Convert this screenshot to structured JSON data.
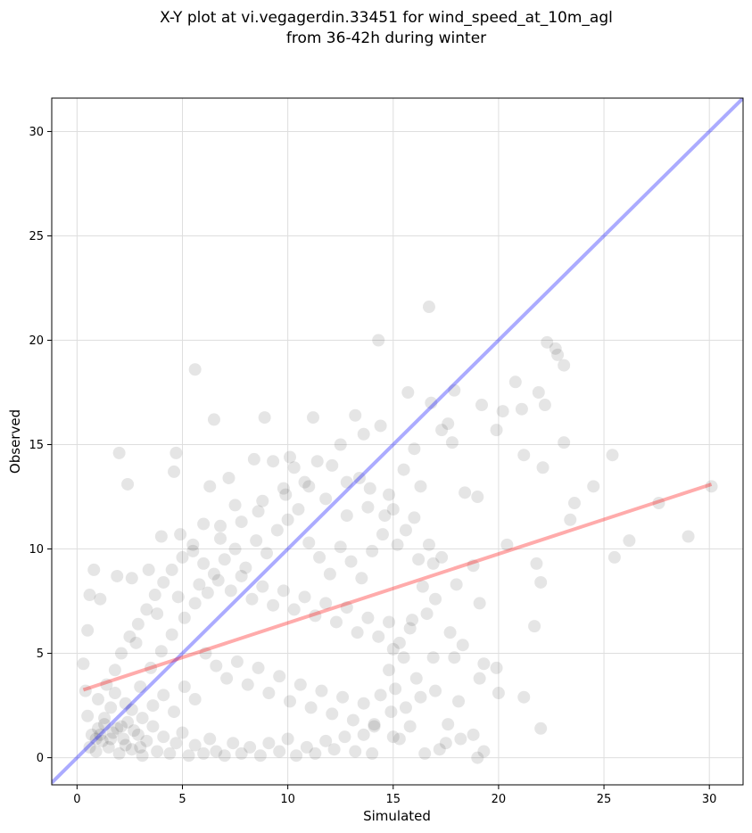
{
  "chart_data": {
    "type": "scatter",
    "title": "X-Y plot at vi.vegagerdin.33451 for wind_speed_at_10m_agl\nfrom 36-42h during winter",
    "title_lines": [
      "X-Y plot at vi.vegagerdin.33451 for wind_speed_at_10m_agl",
      "from 36-42h during winter"
    ],
    "xlabel": "Simulated",
    "ylabel": "Observed",
    "xlim": [
      -1.2,
      31.6
    ],
    "ylim": [
      -1.3,
      31.6
    ],
    "xticks": [
      0,
      5,
      10,
      15,
      20,
      25,
      30
    ],
    "yticks": [
      0,
      5,
      10,
      15,
      20,
      25,
      30
    ],
    "grid": true,
    "point_color": "#000000",
    "point_opacity": 0.1,
    "identity_line": {
      "x": [
        -1.2,
        31.6
      ],
      "y": [
        -1.2,
        31.6
      ],
      "color": "#0000ff",
      "opacity": 0.33
    },
    "regression_line": {
      "x": [
        0.3,
        30.1
      ],
      "y": [
        3.25,
        13.1
      ],
      "color": "#ff0000",
      "opacity": 0.33
    },
    "points": [
      [
        2.0,
        14.6
      ],
      [
        2.4,
        13.1
      ],
      [
        4.6,
        13.7
      ],
      [
        4.7,
        14.6
      ],
      [
        5.6,
        18.6
      ],
      [
        6.5,
        16.2
      ],
      [
        8.9,
        16.3
      ],
      [
        14.3,
        20.0
      ],
      [
        16.7,
        21.6
      ],
      [
        15.7,
        17.5
      ],
      [
        17.9,
        17.6
      ],
      [
        19.2,
        16.9
      ],
      [
        19.9,
        15.7
      ],
      [
        20.2,
        16.6
      ],
      [
        20.8,
        18.0
      ],
      [
        21.1,
        16.7
      ],
      [
        21.9,
        17.5
      ],
      [
        22.2,
        16.9
      ],
      [
        22.3,
        19.9
      ],
      [
        22.7,
        19.6
      ],
      [
        22.8,
        19.3
      ],
      [
        23.1,
        18.8
      ],
      [
        22.1,
        13.9
      ],
      [
        23.1,
        15.1
      ],
      [
        23.4,
        11.4
      ],
      [
        23.6,
        12.2
      ],
      [
        24.5,
        13.0
      ],
      [
        25.4,
        14.5
      ],
      [
        25.5,
        9.6
      ],
      [
        26.2,
        10.4
      ],
      [
        27.6,
        12.2
      ],
      [
        29.0,
        10.6
      ],
      [
        30.1,
        13.0
      ],
      [
        21.7,
        6.3
      ],
      [
        22.0,
        1.4
      ],
      [
        21.2,
        2.9
      ],
      [
        20.0,
        3.1
      ],
      [
        19.9,
        4.3
      ],
      [
        19.3,
        4.5
      ],
      [
        19.1,
        3.8
      ],
      [
        19.3,
        0.3
      ],
      [
        19.0,
        0.0
      ],
      [
        18.8,
        1.1
      ],
      [
        18.2,
        0.9
      ],
      [
        21.8,
        9.3
      ],
      [
        22.0,
        8.4
      ],
      [
        20.4,
        10.2
      ],
      [
        21.2,
        14.5
      ],
      [
        18.4,
        12.7
      ],
      [
        19.0,
        12.5
      ],
      [
        18.8,
        9.2
      ],
      [
        19.1,
        7.4
      ],
      [
        17.8,
        15.1
      ],
      [
        17.6,
        16.0
      ],
      [
        16.8,
        17.0
      ],
      [
        17.3,
        15.7
      ],
      [
        16.0,
        14.8
      ],
      [
        16.3,
        13.0
      ],
      [
        16.0,
        11.5
      ],
      [
        15.6,
        10.9
      ],
      [
        16.7,
        10.2
      ],
      [
        16.4,
        8.2
      ],
      [
        15.9,
        6.6
      ],
      [
        15.0,
        5.2
      ],
      [
        15.5,
        4.8
      ],
      [
        14.8,
        4.2
      ],
      [
        14.4,
        3.0
      ],
      [
        14.9,
        2.2
      ],
      [
        14.1,
        1.6
      ],
      [
        15.0,
        1.0
      ],
      [
        15.8,
        1.5
      ],
      [
        16.5,
        0.2
      ],
      [
        17.2,
        0.4
      ],
      [
        17.6,
        1.6
      ],
      [
        18.1,
        2.7
      ],
      [
        17.0,
        3.2
      ],
      [
        16.1,
        3.8
      ],
      [
        16.9,
        4.8
      ],
      [
        17.5,
        0.7
      ],
      [
        15.3,
        0.9
      ],
      [
        11.2,
        16.3
      ],
      [
        12.5,
        15.0
      ],
      [
        13.2,
        16.4
      ],
      [
        13.6,
        15.5
      ],
      [
        14.4,
        15.9
      ],
      [
        13.4,
        13.4
      ],
      [
        12.1,
        14.0
      ],
      [
        11.0,
        13.0
      ],
      [
        10.1,
        14.4
      ],
      [
        9.3,
        14.2
      ],
      [
        9.9,
        12.6
      ],
      [
        8.6,
        11.8
      ],
      [
        7.5,
        12.1
      ],
      [
        6.8,
        11.1
      ],
      [
        6.0,
        11.2
      ],
      [
        5.5,
        10.2
      ],
      [
        4.9,
        10.7
      ],
      [
        4.0,
        10.6
      ],
      [
        3.4,
        9.0
      ],
      [
        2.6,
        8.6
      ],
      [
        1.9,
        8.7
      ],
      [
        0.8,
        9.0
      ],
      [
        1.1,
        7.6
      ],
      [
        0.6,
        7.8
      ],
      [
        0.5,
        6.1
      ],
      [
        0.3,
        4.5
      ],
      [
        0.4,
        3.2
      ],
      [
        0.5,
        2.0
      ],
      [
        0.7,
        1.1
      ],
      [
        0.9,
        0.3
      ],
      [
        1.2,
        0.8
      ],
      [
        1.0,
        1.4
      ],
      [
        1.3,
        1.9
      ],
      [
        1.5,
        0.5
      ],
      [
        1.7,
        1.2
      ],
      [
        2.0,
        0.2
      ],
      [
        2.2,
        0.9
      ],
      [
        2.4,
        1.7
      ],
      [
        2.6,
        0.4
      ],
      [
        2.9,
        1.1
      ],
      [
        3.1,
        0.1
      ],
      [
        3.3,
        0.8
      ],
      [
        3.6,
        1.5
      ],
      [
        3.8,
        0.3
      ],
      [
        4.1,
        1.0
      ],
      [
        4.4,
        0.2
      ],
      [
        4.7,
        0.7
      ],
      [
        5.0,
        1.2
      ],
      [
        5.3,
        0.1
      ],
      [
        5.6,
        0.6
      ],
      [
        6.0,
        0.2
      ],
      [
        6.3,
        0.9
      ],
      [
        6.6,
        0.3
      ],
      [
        7.0,
        0.1
      ],
      [
        7.4,
        0.7
      ],
      [
        7.8,
        0.2
      ],
      [
        8.2,
        0.5
      ],
      [
        8.7,
        0.1
      ],
      [
        9.1,
        0.7
      ],
      [
        9.6,
        0.3
      ],
      [
        10.0,
        0.9
      ],
      [
        10.4,
        0.1
      ],
      [
        10.9,
        0.5
      ],
      [
        11.3,
        0.2
      ],
      [
        11.8,
        0.8
      ],
      [
        12.2,
        0.4
      ],
      [
        12.7,
        1.0
      ],
      [
        13.2,
        0.3
      ],
      [
        13.6,
        1.1
      ],
      [
        14.0,
        0.2
      ],
      [
        1.0,
        2.8
      ],
      [
        1.4,
        3.5
      ],
      [
        1.8,
        4.2
      ],
      [
        2.1,
        5.0
      ],
      [
        2.5,
        5.8
      ],
      [
        2.9,
        6.4
      ],
      [
        3.3,
        7.1
      ],
      [
        3.7,
        7.8
      ],
      [
        4.1,
        8.4
      ],
      [
        4.5,
        9.0
      ],
      [
        5.0,
        9.6
      ],
      [
        5.5,
        9.9
      ],
      [
        6.0,
        9.3
      ],
      [
        6.5,
        8.8
      ],
      [
        7.0,
        9.5
      ],
      [
        7.5,
        10.0
      ],
      [
        8.0,
        9.1
      ],
      [
        8.5,
        10.4
      ],
      [
        9.0,
        9.8
      ],
      [
        9.5,
        10.9
      ],
      [
        10.0,
        11.4
      ],
      [
        10.5,
        11.9
      ],
      [
        11.0,
        10.3
      ],
      [
        11.5,
        9.6
      ],
      [
        12.0,
        8.8
      ],
      [
        12.5,
        10.1
      ],
      [
        13.0,
        9.4
      ],
      [
        13.5,
        8.6
      ],
      [
        14.0,
        9.9
      ],
      [
        14.5,
        10.7
      ],
      [
        15.0,
        11.9
      ],
      [
        15.5,
        13.8
      ],
      [
        14.8,
        12.6
      ],
      [
        13.8,
        12.0
      ],
      [
        12.8,
        11.6
      ],
      [
        11.8,
        12.4
      ],
      [
        10.8,
        13.2
      ],
      [
        9.8,
        12.9
      ],
      [
        8.8,
        12.3
      ],
      [
        7.8,
        11.3
      ],
      [
        6.8,
        10.5
      ],
      [
        5.8,
        8.3
      ],
      [
        4.8,
        7.7
      ],
      [
        3.8,
        6.9
      ],
      [
        2.8,
        5.5
      ],
      [
        1.8,
        3.1
      ],
      [
        2.3,
        2.6
      ],
      [
        3.0,
        3.4
      ],
      [
        3.5,
        4.3
      ],
      [
        4.0,
        5.1
      ],
      [
        4.5,
        5.9
      ],
      [
        5.1,
        6.7
      ],
      [
        5.6,
        7.4
      ],
      [
        6.2,
        7.9
      ],
      [
        6.7,
        8.5
      ],
      [
        7.3,
        8.0
      ],
      [
        7.8,
        8.7
      ],
      [
        8.3,
        7.6
      ],
      [
        8.8,
        8.2
      ],
      [
        9.3,
        7.3
      ],
      [
        9.8,
        8.0
      ],
      [
        10.3,
        7.1
      ],
      [
        10.8,
        7.7
      ],
      [
        11.3,
        6.8
      ],
      [
        11.8,
        7.4
      ],
      [
        12.3,
        6.5
      ],
      [
        12.8,
        7.2
      ],
      [
        13.3,
        6.0
      ],
      [
        13.8,
        6.7
      ],
      [
        14.3,
        5.8
      ],
      [
        14.8,
        6.5
      ],
      [
        15.3,
        5.5
      ],
      [
        15.8,
        6.2
      ],
      [
        6.1,
        5.0
      ],
      [
        6.6,
        4.4
      ],
      [
        7.1,
        3.8
      ],
      [
        7.6,
        4.6
      ],
      [
        8.1,
        3.5
      ],
      [
        8.6,
        4.3
      ],
      [
        9.1,
        3.1
      ],
      [
        9.6,
        3.9
      ],
      [
        10.1,
        2.7
      ],
      [
        10.6,
        3.5
      ],
      [
        11.1,
        2.4
      ],
      [
        11.6,
        3.2
      ],
      [
        12.1,
        2.1
      ],
      [
        12.6,
        2.9
      ],
      [
        13.1,
        1.8
      ],
      [
        13.6,
        2.6
      ],
      [
        14.1,
        1.5
      ],
      [
        5.1,
        3.4
      ],
      [
        5.6,
        2.8
      ],
      [
        4.6,
        2.2
      ],
      [
        4.1,
        3.0
      ],
      [
        3.6,
        2.5
      ],
      [
        3.1,
        1.9
      ],
      [
        2.6,
        2.3
      ],
      [
        2.1,
        1.5
      ],
      [
        1.6,
        2.4
      ],
      [
        1.1,
        1.1
      ],
      [
        0.6,
        0.5
      ],
      [
        0.9,
        0.9
      ],
      [
        1.3,
        1.6
      ],
      [
        1.6,
        0.9
      ],
      [
        1.9,
        1.4
      ],
      [
        2.3,
        0.6
      ],
      [
        2.7,
        1.3
      ],
      [
        3.0,
        0.5
      ],
      [
        8.4,
        14.3
      ],
      [
        7.2,
        13.4
      ],
      [
        6.3,
        13.0
      ],
      [
        10.3,
        13.9
      ],
      [
        11.4,
        14.2
      ],
      [
        12.8,
        13.2
      ],
      [
        13.9,
        12.9
      ],
      [
        14.6,
        11.6
      ],
      [
        15.2,
        10.2
      ],
      [
        16.2,
        9.5
      ],
      [
        16.9,
        9.3
      ],
      [
        17.3,
        9.6
      ],
      [
        18.0,
        8.3
      ],
      [
        17.0,
        7.6
      ],
      [
        16.6,
        6.9
      ],
      [
        17.7,
        6.0
      ],
      [
        18.3,
        5.4
      ],
      [
        17.9,
        4.8
      ],
      [
        16.3,
        2.9
      ],
      [
        15.6,
        2.4
      ],
      [
        15.1,
        3.3
      ]
    ]
  }
}
